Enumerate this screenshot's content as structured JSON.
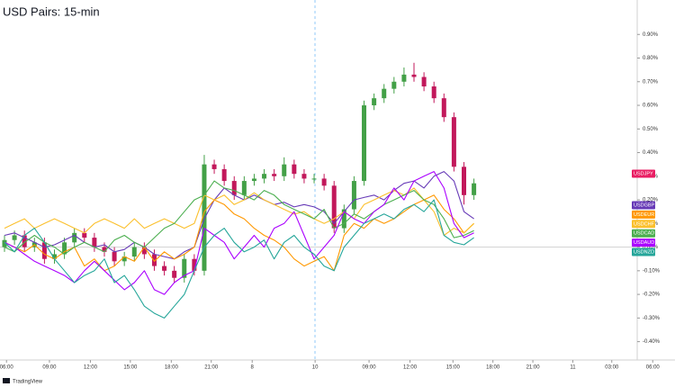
{
  "chart_data": [
    {
      "type": "candlestick",
      "title": "USD Pairs: 15-min",
      "watermark": "TradingView",
      "xlim": [
        0,
        66.5
      ],
      "xticks": [
        {
          "value": 0.2,
          "label": "06:00"
        },
        {
          "value": 4.5,
          "label": "09:00"
        },
        {
          "value": 8.6,
          "label": "12:00"
        },
        {
          "value": 12.6,
          "label": "15:00"
        },
        {
          "value": 16.7,
          "label": "18:00"
        },
        {
          "value": 20.7,
          "label": "21:00"
        },
        {
          "value": 24.8,
          "label": "8"
        },
        {
          "value": 31.1,
          "label": "10"
        },
        {
          "value": 36.5,
          "label": "09:00"
        },
        {
          "value": 40.6,
          "label": "12:00"
        },
        {
          "value": 44.9,
          "label": "15:00"
        },
        {
          "value": 48.9,
          "label": "18:00"
        },
        {
          "value": 52.9,
          "label": "21:00"
        },
        {
          "value": 56.9,
          "label": "11"
        },
        {
          "value": 60.8,
          "label": "03:00"
        },
        {
          "value": 64.9,
          "label": "06:00"
        }
      ],
      "ylim": [
        -0.47,
        1.0
      ],
      "yticks": [
        {
          "value": 0.9,
          "label": "0.90%"
        },
        {
          "value": 0.8,
          "label": "0.80%"
        },
        {
          "value": 0.7,
          "label": "0.70%"
        },
        {
          "value": 0.6,
          "label": "0.60%"
        },
        {
          "value": 0.5,
          "label": "0.50%"
        },
        {
          "value": 0.4,
          "label": "0.40%"
        },
        {
          "value": 0.3,
          "label": "0.30%"
        },
        {
          "value": 0.2,
          "label": "0.20%"
        },
        {
          "value": 0.1,
          "label": "0.10%"
        },
        {
          "value": 0,
          "label": "0.00%"
        },
        {
          "value": -0.1,
          "label": "-0.10%"
        },
        {
          "value": -0.2,
          "label": "-0.20%"
        },
        {
          "value": -0.3,
          "label": "-0.30%"
        },
        {
          "value": -0.4,
          "label": "-0.40%"
        }
      ],
      "series": [
        {
          "name": "USDJPY",
          "color": "#e91e63",
          "up_color": "#43a047",
          "down_color": "#c2185b",
          "open": [
            0.0,
            0.03,
            0.05,
            0.0,
            0.02,
            -0.05,
            -0.03,
            0.02,
            0.06,
            0.04,
            0.0,
            -0.02,
            -0.06,
            -0.04,
            0.0,
            -0.03,
            -0.08,
            -0.1,
            -0.13,
            -0.05,
            -0.1,
            0.35,
            0.33,
            0.28,
            0.22,
            0.28,
            0.29,
            0.31,
            0.3,
            0.35,
            0.31,
            0.29,
            0.29,
            0.26,
            0.08,
            0.16,
            0.28,
            0.6,
            0.63,
            0.67,
            0.7,
            0.73,
            0.72,
            0.68,
            0.63,
            0.55,
            0.34,
            0.22
          ],
          "high": [
            0.05,
            0.07,
            0.07,
            0.04,
            0.04,
            -0.01,
            0.04,
            0.08,
            0.08,
            0.06,
            0.02,
            0.0,
            -0.02,
            0.02,
            0.02,
            -0.01,
            -0.06,
            -0.08,
            -0.03,
            -0.03,
            0.39,
            0.37,
            0.35,
            0.3,
            0.3,
            0.31,
            0.33,
            0.33,
            0.38,
            0.37,
            0.33,
            0.31,
            0.31,
            0.28,
            0.18,
            0.3,
            0.62,
            0.65,
            0.69,
            0.72,
            0.76,
            0.78,
            0.74,
            0.7,
            0.65,
            0.57,
            0.36,
            0.29
          ],
          "low": [
            -0.02,
            0.01,
            -0.02,
            -0.02,
            -0.07,
            -0.07,
            -0.05,
            0.0,
            0.02,
            -0.02,
            -0.04,
            -0.08,
            -0.08,
            -0.06,
            -0.05,
            -0.1,
            -0.12,
            -0.15,
            -0.15,
            -0.12,
            -0.12,
            0.31,
            0.26,
            0.2,
            0.2,
            0.26,
            0.27,
            0.28,
            0.28,
            0.29,
            0.27,
            0.27,
            0.24,
            0.06,
            0.06,
            0.14,
            0.26,
            0.58,
            0.61,
            0.65,
            0.68,
            0.7,
            0.66,
            0.61,
            0.53,
            0.32,
            0.18,
            0.2
          ],
          "close": [
            0.03,
            0.05,
            0.0,
            0.02,
            -0.05,
            -0.03,
            0.02,
            0.06,
            0.04,
            0.0,
            -0.02,
            -0.06,
            -0.04,
            0.0,
            -0.03,
            -0.08,
            -0.1,
            -0.13,
            -0.05,
            -0.1,
            0.35,
            0.33,
            0.28,
            0.22,
            0.28,
            0.29,
            0.31,
            0.3,
            0.35,
            0.31,
            0.29,
            0.29,
            0.26,
            0.08,
            0.16,
            0.28,
            0.6,
            0.63,
            0.67,
            0.7,
            0.73,
            0.72,
            0.68,
            0.63,
            0.55,
            0.34,
            0.22,
            0.27
          ]
        }
      ]
    },
    {
      "type": "line",
      "series": [
        {
          "name": "USDGBP",
          "color": "#673ab7",
          "values": [
            0.05,
            0.06,
            0.04,
            0.02,
            0.0,
            0.01,
            0.03,
            0.05,
            0.02,
            0.0,
            0.01,
            -0.02,
            -0.01,
            0.02,
            0.0,
            -0.03,
            -0.04,
            -0.05,
            -0.02,
            0.0,
            0.12,
            0.2,
            0.25,
            0.22,
            0.2,
            0.22,
            0.2,
            0.18,
            0.19,
            0.17,
            0.18,
            0.17,
            0.15,
            0.1,
            0.15,
            0.2,
            0.21,
            0.22,
            0.2,
            0.24,
            0.27,
            0.28,
            0.25,
            0.3,
            0.32,
            0.28,
            0.15,
            0.12
          ]
        },
        {
          "name": "USDEUR",
          "color": "#ff9800",
          "values": [
            0.02,
            0.0,
            -0.02,
            0.01,
            -0.03,
            -0.05,
            -0.02,
            0.0,
            -0.08,
            -0.05,
            -0.1,
            -0.08,
            -0.04,
            -0.06,
            0.0,
            -0.06,
            -0.02,
            -0.05,
            -0.03,
            0.0,
            0.15,
            0.2,
            0.18,
            0.14,
            0.12,
            0.08,
            0.05,
            0.03,
            0.0,
            -0.05,
            -0.08,
            -0.06,
            -0.04,
            -0.1,
            0.05,
            0.1,
            0.08,
            0.12,
            0.1,
            0.12,
            0.15,
            0.18,
            0.2,
            0.22,
            0.16,
            0.12,
            0.06,
            0.1
          ]
        },
        {
          "name": "USDCHF",
          "color": "#fbc02d",
          "values": [
            0.08,
            0.1,
            0.12,
            0.08,
            0.1,
            0.12,
            0.1,
            0.08,
            0.06,
            0.1,
            0.12,
            0.1,
            0.08,
            0.12,
            0.08,
            0.1,
            0.12,
            0.1,
            0.08,
            0.1,
            0.22,
            0.2,
            0.22,
            0.18,
            0.2,
            0.23,
            0.2,
            0.18,
            0.16,
            0.14,
            0.15,
            0.12,
            0.1,
            0.12,
            0.15,
            0.12,
            0.18,
            0.2,
            0.22,
            0.24,
            0.22,
            0.25,
            0.2,
            0.15,
            0.05,
            0.08,
            0.06,
            0.1
          ]
        },
        {
          "name": "USDCAD",
          "color": "#4caf50",
          "values": [
            0.0,
            -0.02,
            0.02,
            0.05,
            0.02,
            0.0,
            -0.03,
            0.0,
            0.02,
            0.0,
            -0.02,
            0.03,
            0.05,
            0.02,
            0.0,
            0.04,
            0.08,
            0.1,
            0.15,
            0.2,
            0.22,
            0.28,
            0.25,
            0.24,
            0.22,
            0.2,
            0.24,
            0.22,
            0.18,
            0.16,
            0.14,
            0.12,
            0.16,
            0.08,
            0.1,
            0.14,
            0.12,
            0.15,
            0.18,
            0.2,
            0.22,
            0.24,
            0.2,
            0.18,
            0.12,
            0.04,
            0.05,
            0.07
          ]
        },
        {
          "name": "USDAUD",
          "color": "#aa00ff",
          "values": [
            0.02,
            0.0,
            -0.03,
            -0.06,
            -0.08,
            -0.1,
            -0.12,
            -0.15,
            -0.1,
            -0.06,
            -0.1,
            -0.14,
            -0.18,
            -0.15,
            -0.1,
            -0.18,
            -0.2,
            -0.15,
            -0.12,
            -0.1,
            0.08,
            0.05,
            0.02,
            -0.05,
            0.0,
            0.05,
            0.0,
            0.08,
            0.1,
            0.15,
            0.05,
            -0.05,
            0.0,
            0.05,
            0.15,
            0.12,
            0.1,
            0.15,
            0.18,
            0.25,
            0.2,
            0.28,
            0.3,
            0.32,
            0.25,
            0.1,
            0.04,
            0.06
          ]
        },
        {
          "name": "USDNZD",
          "color": "#26a69a",
          "values": [
            0.02,
            -0.02,
            0.05,
            0.08,
            0.02,
            -0.05,
            -0.1,
            -0.15,
            -0.12,
            -0.1,
            -0.05,
            -0.15,
            -0.12,
            -0.18,
            -0.25,
            -0.28,
            -0.3,
            -0.25,
            -0.2,
            -0.1,
            0.0,
            0.05,
            0.08,
            0.02,
            -0.02,
            0.0,
            0.03,
            -0.05,
            0.02,
            0.05,
            0.0,
            -0.03,
            -0.08,
            -0.1,
            0.0,
            0.05,
            0.1,
            0.12,
            0.14,
            0.12,
            0.16,
            0.18,
            0.15,
            0.2,
            0.05,
            0.02,
            0.01,
            0.04
          ]
        }
      ]
    }
  ]
}
